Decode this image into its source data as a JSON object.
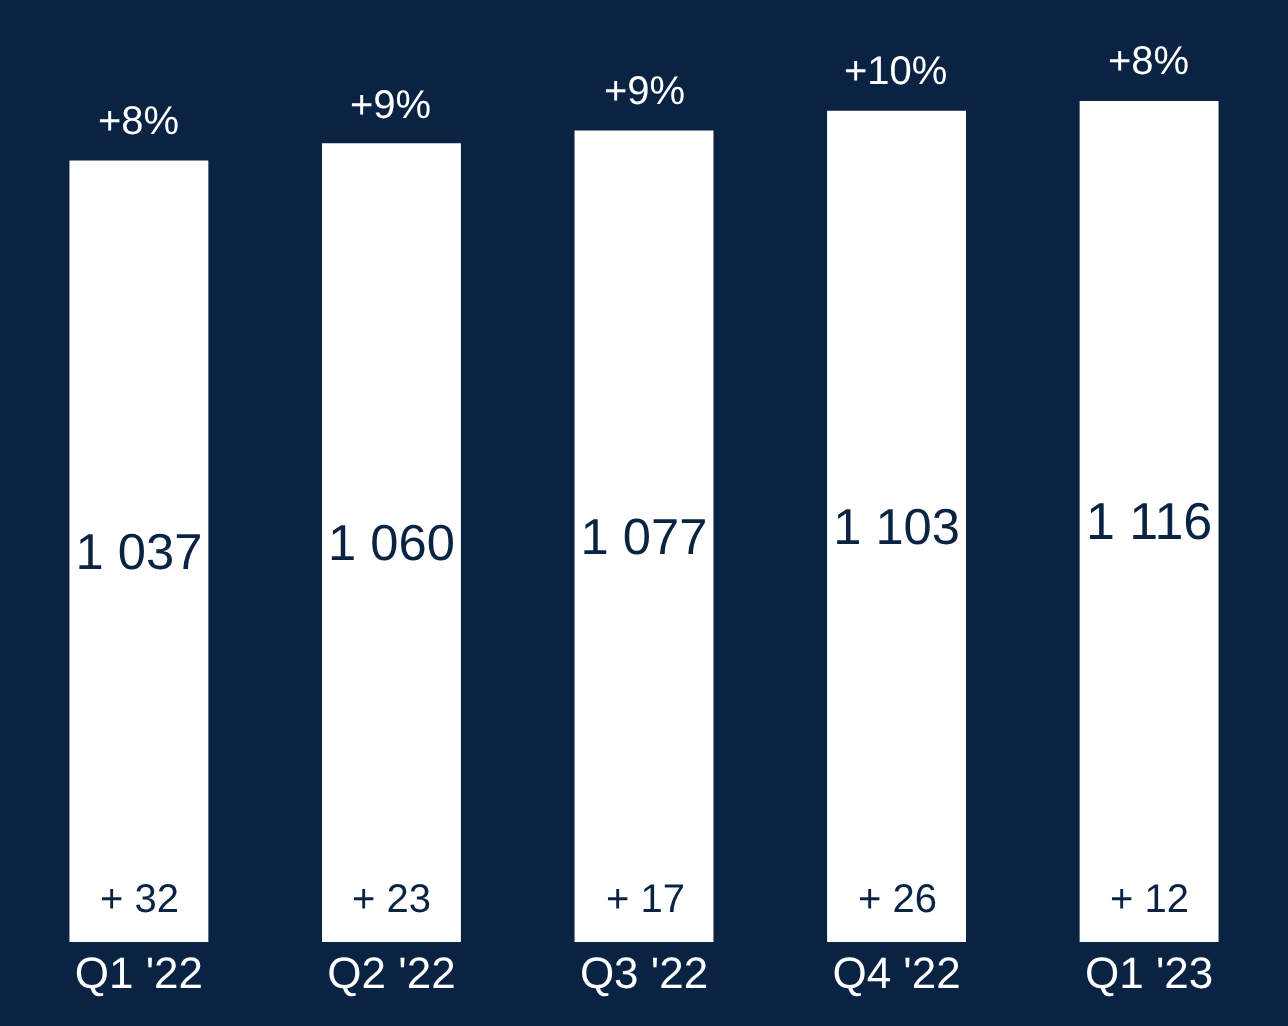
{
  "chart_data": {
    "type": "bar",
    "categories": [
      "Q1 '22",
      "Q2 '22",
      "Q3 '22",
      "Q4 '22",
      "Q1 '23"
    ],
    "values": [
      1037,
      1060,
      1077,
      1103,
      1116
    ],
    "value_labels": [
      "1 037",
      "1 060",
      "1 077",
      "1 103",
      "1 116"
    ],
    "color": "#ffffff",
    "ylim": [
      0,
      1250
    ],
    "tick_labels": "x",
    "grid": false,
    "annotations": [
      {
        "text": "+8%",
        "x": "Q1 '22",
        "y": 1037
      },
      {
        "text": "+9%",
        "x": "Q2 '22",
        "y": 1060
      },
      {
        "text": "+9%",
        "x": "Q3 '22",
        "y": 1077
      },
      {
        "text": "+10%",
        "x": "Q4 '22",
        "y": 1103
      },
      {
        "text": "+8%",
        "x": "Q1 '23",
        "y": 1116
      },
      {
        "text": "+ 32",
        "x": "Q1 '22",
        "y": 0
      },
      {
        "text": "+ 23",
        "x": "Q2 '22",
        "y": 0
      },
      {
        "text": "+ 17",
        "x": "Q3 '22",
        "y": 0
      },
      {
        "text": "+ 26",
        "x": "Q4 '22",
        "y": 0
      },
      {
        "text": "+ 12",
        "x": "Q1 '23",
        "y": 0
      }
    ]
  }
}
